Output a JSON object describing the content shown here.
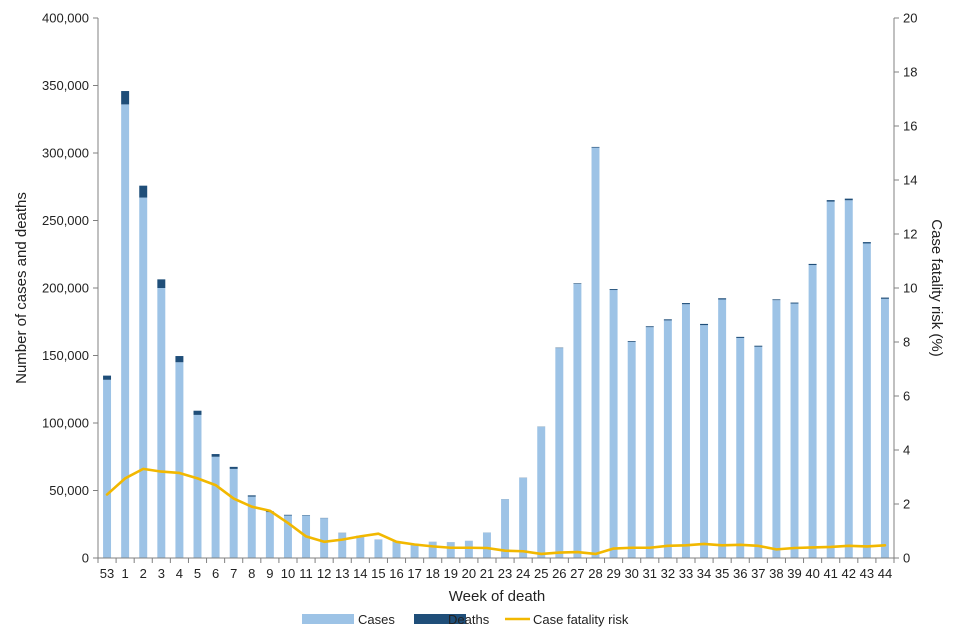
{
  "chart_data": {
    "type": "bar",
    "stacked": true,
    "xlabel": "Week of death",
    "ylabel_left": "Number of cases and deaths",
    "ylabel_right": "Case fatality risk (%)",
    "ylim_left": [
      0,
      400000
    ],
    "ylim_right": [
      0,
      20
    ],
    "yticks_left": [
      "0",
      "50,000",
      "100,000",
      "150,000",
      "200,000",
      "250,000",
      "300,000",
      "350,000",
      "400,000"
    ],
    "yticks_right": [
      "0",
      "2",
      "4",
      "6",
      "8",
      "10",
      "12",
      "14",
      "16",
      "18",
      "20"
    ],
    "grid": false,
    "legend_position": "bottom",
    "categories": [
      "53",
      "1",
      "2",
      "3",
      "4",
      "5",
      "6",
      "7",
      "8",
      "9",
      "10",
      "11",
      "12",
      "13",
      "14",
      "15",
      "16",
      "17",
      "18",
      "19",
      "20",
      "21",
      "23",
      "24",
      "25",
      "26",
      "27",
      "28",
      "29",
      "30",
      "31",
      "32",
      "33",
      "34",
      "35",
      "36",
      "37",
      "38",
      "39",
      "40",
      "41",
      "42",
      "43",
      "44"
    ],
    "series": [
      {
        "name": "Cases",
        "type": "bar",
        "axis": "left",
        "color": "#9dc3e6",
        "values": [
          132000,
          336000,
          267000,
          200000,
          145000,
          106000,
          75000,
          66000,
          45500,
          34000,
          31500,
          31500,
          29500,
          18500,
          16300,
          13500,
          12000,
          10500,
          12000,
          11700,
          12700,
          18800,
          43500,
          59300,
          97200,
          155500,
          203000,
          304000,
          198500,
          160000,
          171000,
          176000,
          188000,
          172500,
          191500,
          163000,
          156500,
          191000,
          188500,
          217000,
          264000,
          265000,
          233000,
          192000
        ]
      },
      {
        "name": "Deaths",
        "type": "bar",
        "axis": "left",
        "color": "#1f4e79",
        "values": [
          3100,
          9900,
          8800,
          6400,
          4600,
          3100,
          2000,
          1500,
          900,
          600,
          500,
          300,
          200,
          150,
          120,
          120,
          100,
          50,
          50,
          40,
          40,
          70,
          100,
          150,
          150,
          300,
          450,
          500,
          700,
          600,
          650,
          800,
          850,
          900,
          900,
          800,
          750,
          600,
          700,
          850,
          1100,
          1200,
          1000,
          900
        ]
      },
      {
        "name": "Case fatality risk",
        "type": "line",
        "axis": "right",
        "color": "#f2b800",
        "values": [
          2.35,
          2.95,
          3.3,
          3.2,
          3.15,
          2.95,
          2.7,
          2.2,
          1.9,
          1.75,
          1.3,
          0.8,
          0.6,
          0.68,
          0.8,
          0.9,
          0.6,
          0.5,
          0.43,
          0.38,
          0.38,
          0.37,
          0.27,
          0.25,
          0.15,
          0.2,
          0.22,
          0.15,
          0.35,
          0.38,
          0.38,
          0.45,
          0.47,
          0.52,
          0.47,
          0.49,
          0.45,
          0.32,
          0.37,
          0.39,
          0.41,
          0.45,
          0.43,
          0.47
        ]
      }
    ]
  }
}
